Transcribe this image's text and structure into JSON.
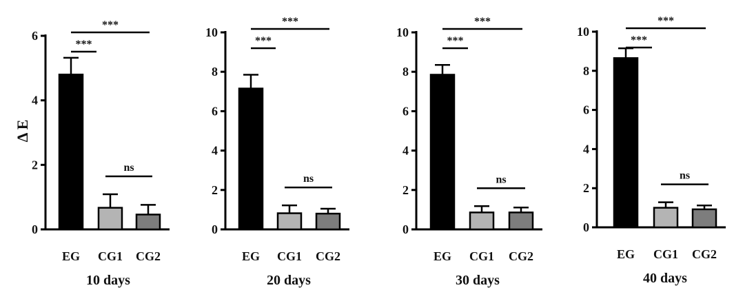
{
  "figure": {
    "ylabel": "Δ E"
  },
  "colors": {
    "EG": "#000000",
    "CG1": "#b4b4b4",
    "CG2": "#7d7d7d",
    "axis": "#000000"
  },
  "chart_data": [
    {
      "type": "bar",
      "title": "10 days",
      "categories": [
        "EG",
        "CG1",
        "CG2"
      ],
      "values": [
        4.8,
        0.67,
        0.46
      ],
      "errors": [
        0.52,
        0.42,
        0.3
      ],
      "ylim": [
        0,
        6
      ],
      "yticks": [
        "0",
        "2",
        "4",
        "6"
      ],
      "significance": [
        {
          "from": "EG",
          "to": "CG1",
          "label": "***"
        },
        {
          "from": "EG",
          "to": "CG2",
          "label": "***"
        },
        {
          "from": "CG1",
          "to": "CG2",
          "label": "ns"
        }
      ]
    },
    {
      "type": "bar",
      "title": "20 days",
      "categories": [
        "EG",
        "CG1",
        "CG2"
      ],
      "values": [
        7.15,
        0.82,
        0.8
      ],
      "errors": [
        0.7,
        0.4,
        0.25
      ],
      "ylim": [
        0,
        10
      ],
      "yticks": [
        "0",
        "2",
        "4",
        "6",
        "8",
        "10"
      ],
      "significance": [
        {
          "from": "EG",
          "to": "CG1",
          "label": "***"
        },
        {
          "from": "EG",
          "to": "CG2",
          "label": "***"
        },
        {
          "from": "CG1",
          "to": "CG2",
          "label": "ns"
        }
      ]
    },
    {
      "type": "bar",
      "title": "30 days",
      "categories": [
        "EG",
        "CG1",
        "CG2"
      ],
      "values": [
        7.85,
        0.86,
        0.86
      ],
      "errors": [
        0.5,
        0.32,
        0.25
      ],
      "ylim": [
        0,
        10
      ],
      "yticks": [
        "0",
        "2",
        "4",
        "6",
        "8",
        "10"
      ],
      "significance": [
        {
          "from": "EG",
          "to": "CG1",
          "label": "***"
        },
        {
          "from": "EG",
          "to": "CG2",
          "label": "***"
        },
        {
          "from": "CG1",
          "to": "CG2",
          "label": "ns"
        }
      ]
    },
    {
      "type": "bar",
      "title": "40 days",
      "categories": [
        "EG",
        "CG1",
        "CG2"
      ],
      "values": [
        8.65,
        1.0,
        0.92
      ],
      "errors": [
        0.5,
        0.28,
        0.2
      ],
      "ylim": [
        0,
        10
      ],
      "yticks": [
        "0",
        "2",
        "4",
        "6",
        "8",
        "10"
      ],
      "significance": [
        {
          "from": "EG",
          "to": "CG1",
          "label": "***"
        },
        {
          "from": "EG",
          "to": "CG2",
          "label": "***"
        },
        {
          "from": "CG1",
          "to": "CG2",
          "label": "ns"
        }
      ]
    }
  ]
}
